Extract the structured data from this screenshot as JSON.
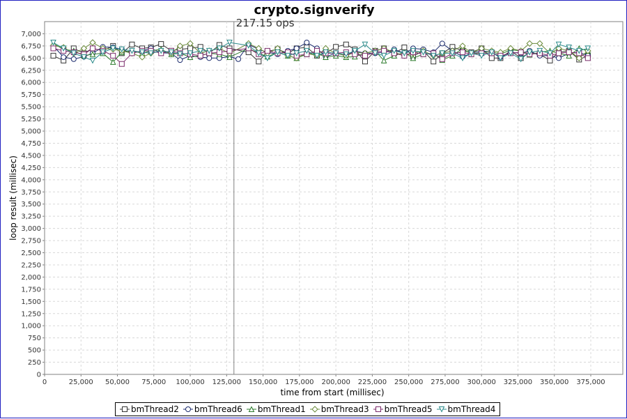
{
  "chart_data": {
    "type": "line",
    "title": "crypto.signverify",
    "annotation": "217.15 ops",
    "annotation_x": 130000,
    "xlabel": "time from start (millisec)",
    "ylabel": "loop result (millisec)",
    "xlim": [
      0,
      397000
    ],
    "ylim": [
      0,
      7250
    ],
    "x_ticks": [
      0,
      25000,
      50000,
      75000,
      100000,
      125000,
      150000,
      175000,
      200000,
      225000,
      250000,
      275000,
      300000,
      325000,
      350000,
      375000
    ],
    "x_tick_labels": [
      "0",
      "25,000",
      "50,000",
      "75,000",
      "100,000",
      "125,000",
      "150,000",
      "175,000",
      "200,000",
      "225,000",
      "250,000",
      "275,000",
      "300,000",
      "325,000",
      "350,000",
      "375,000"
    ],
    "y_ticks": [
      0,
      250,
      500,
      750,
      1000,
      1250,
      1500,
      1750,
      2000,
      2250,
      2500,
      2750,
      3000,
      3250,
      3500,
      3750,
      4000,
      4250,
      4500,
      4750,
      5000,
      5250,
      5500,
      5750,
      6000,
      6250,
      6500,
      6750,
      7000
    ],
    "y_tick_labels": [
      "0",
      "250",
      "500",
      "750",
      "1,000",
      "1,250",
      "1,500",
      "1,750",
      "2,000",
      "2,250",
      "2,500",
      "2,750",
      "3,000",
      "3,250",
      "3,500",
      "3,750",
      "4,000",
      "4,250",
      "4,500",
      "4,750",
      "5,000",
      "5,250",
      "5,500",
      "5,750",
      "6,000",
      "6,250",
      "6,500",
      "6,750",
      "7,000"
    ],
    "grid": true,
    "legend_position": "bottom",
    "series": [
      {
        "name": "bmThread2",
        "color": "#333333",
        "marker": "square",
        "x": [
          6000,
          13000,
          20000,
          27000,
          33000,
          40000,
          47000,
          53000,
          60000,
          67000,
          73000,
          80000,
          87000,
          93000,
          100000,
          107000,
          113000,
          120000,
          127000,
          140000,
          147000,
          153000,
          160000,
          167000,
          173000,
          180000,
          187000,
          193000,
          200000,
          207000,
          213000,
          220000,
          227000,
          233000,
          240000,
          247000,
          253000,
          260000,
          267000,
          273000,
          280000,
          287000,
          293000,
          300000,
          307000,
          313000,
          320000,
          327000,
          333000,
          340000,
          347000,
          353000,
          360000,
          367000,
          373000
        ],
        "y": [
          6550,
          6450,
          6700,
          6600,
          6700,
          6650,
          6750,
          6600,
          6780,
          6700,
          6720,
          6790,
          6650,
          6680,
          6700,
          6730,
          6600,
          6770,
          6700,
          6620,
          6430,
          6640,
          6680,
          6600,
          6700,
          6720,
          6550,
          6600,
          6730,
          6780,
          6680,
          6430,
          6650,
          6700,
          6600,
          6720,
          6540,
          6650,
          6430,
          6600,
          6730,
          6650,
          6620,
          6700,
          6500,
          6500,
          6650,
          6500,
          6620,
          6580,
          6450,
          6620,
          6650,
          6470,
          6550
        ]
      },
      {
        "name": "bmThread6",
        "color": "#1a2a6c",
        "marker": "circle",
        "x": [
          6000,
          13000,
          20000,
          27000,
          33000,
          40000,
          47000,
          53000,
          60000,
          67000,
          73000,
          80000,
          87000,
          93000,
          100000,
          107000,
          113000,
          120000,
          127000,
          133000,
          140000,
          147000,
          153000,
          160000,
          167000,
          173000,
          180000,
          187000,
          193000,
          200000,
          207000,
          213000,
          220000,
          227000,
          233000,
          240000,
          247000,
          253000,
          260000,
          267000,
          273000,
          280000,
          287000,
          293000,
          300000,
          307000,
          313000,
          320000,
          327000,
          333000,
          340000,
          347000,
          353000,
          360000,
          367000,
          373000
        ],
        "y": [
          6750,
          6520,
          6480,
          6530,
          6600,
          6730,
          6720,
          6680,
          6600,
          6650,
          6700,
          6610,
          6600,
          6460,
          6550,
          6520,
          6500,
          6500,
          6530,
          6480,
          6780,
          6680,
          6620,
          6580,
          6650,
          6700,
          6820,
          6700,
          6530,
          6600,
          6550,
          6650,
          6600,
          6600,
          6620,
          6680,
          6600,
          6700,
          6680,
          6620,
          6800,
          6650,
          6530,
          6600,
          6650,
          6620,
          6520,
          6620,
          6600,
          6650,
          6550,
          6550,
          6500,
          6600,
          6620,
          6550
        ]
      },
      {
        "name": "bmThread1",
        "color": "#2a7a2a",
        "marker": "triangle-up",
        "x": [
          6000,
          13000,
          20000,
          27000,
          33000,
          40000,
          47000,
          53000,
          60000,
          67000,
          73000,
          80000,
          87000,
          93000,
          100000,
          107000,
          113000,
          120000,
          127000,
          140000,
          147000,
          153000,
          160000,
          167000,
          173000,
          180000,
          187000,
          193000,
          200000,
          207000,
          213000,
          220000,
          227000,
          233000,
          240000,
          247000,
          253000,
          260000,
          267000,
          273000,
          280000,
          287000,
          293000,
          300000,
          307000,
          313000,
          320000,
          327000,
          333000,
          340000,
          347000,
          353000,
          360000,
          367000,
          373000
        ],
        "y": [
          6800,
          6680,
          6650,
          6550,
          6580,
          6600,
          6420,
          6620,
          6650,
          6600,
          6650,
          6680,
          6580,
          6600,
          6520,
          6550,
          6600,
          6580,
          6520,
          6700,
          6600,
          6530,
          6620,
          6550,
          6500,
          6580,
          6600,
          6520,
          6550,
          6520,
          6530,
          6600,
          6650,
          6450,
          6550,
          6620,
          6500,
          6580,
          6600,
          6460,
          6550,
          6700,
          6580,
          6620,
          6630,
          6580,
          6670,
          6650,
          6570,
          6620,
          6650,
          6600,
          6550,
          6700,
          6650
        ]
      },
      {
        "name": "bmThread3",
        "color": "#6a8a3a",
        "marker": "diamond",
        "x": [
          6000,
          13000,
          20000,
          27000,
          33000,
          40000,
          47000,
          53000,
          60000,
          67000,
          73000,
          80000,
          87000,
          93000,
          100000,
          107000,
          113000,
          120000,
          127000,
          140000,
          147000,
          153000,
          160000,
          167000,
          173000,
          180000,
          187000,
          193000,
          200000,
          207000,
          213000,
          220000,
          227000,
          233000,
          240000,
          247000,
          253000,
          260000,
          267000,
          273000,
          280000,
          287000,
          293000,
          300000,
          307000,
          313000,
          320000,
          327000,
          333000,
          340000,
          347000,
          353000,
          360000,
          367000,
          373000
        ],
        "y": [
          6760,
          6720,
          6600,
          6700,
          6820,
          6700,
          6680,
          6650,
          6600,
          6520,
          6600,
          6650,
          6600,
          6750,
          6800,
          6600,
          6650,
          6700,
          6600,
          6800,
          6700,
          6600,
          6700,
          6550,
          6500,
          6600,
          6550,
          6700,
          6600,
          6550,
          6620,
          6600,
          6650,
          6700,
          6620,
          6550,
          6600,
          6650,
          6550,
          6600,
          6650,
          6750,
          6600,
          6700,
          6650,
          6620,
          6700,
          6650,
          6800,
          6800,
          6600,
          6700,
          6650,
          6500,
          6650
        ]
      },
      {
        "name": "bmThread5",
        "color": "#7a2a6a",
        "marker": "square",
        "x": [
          6000,
          13000,
          20000,
          27000,
          33000,
          40000,
          47000,
          53000,
          60000,
          67000,
          73000,
          80000,
          87000,
          93000,
          100000,
          107000,
          113000,
          120000,
          127000,
          140000,
          147000,
          153000,
          160000,
          167000,
          173000,
          180000,
          187000,
          193000,
          200000,
          207000,
          213000,
          220000,
          227000,
          233000,
          240000,
          247000,
          253000,
          260000,
          267000,
          273000,
          280000,
          287000,
          293000,
          300000,
          307000,
          313000,
          320000,
          327000,
          333000,
          340000,
          347000,
          353000,
          360000,
          367000,
          373000
        ],
        "y": [
          6700,
          6650,
          6620,
          6580,
          6700,
          6650,
          6550,
          6380,
          6600,
          6650,
          6650,
          6600,
          6650,
          6600,
          6580,
          6550,
          6600,
          6620,
          6650,
          6700,
          6580,
          6650,
          6600,
          6620,
          6550,
          6580,
          6650,
          6600,
          6600,
          6620,
          6580,
          6550,
          6620,
          6650,
          6600,
          6550,
          6620,
          6580,
          6600,
          6480,
          6600,
          6620,
          6580,
          6600,
          6600,
          6550,
          6600,
          6620,
          6580,
          6600,
          6550,
          6600,
          6620,
          6600,
          6500
        ]
      },
      {
        "name": "bmThread4",
        "color": "#2a8a8a",
        "marker": "triangle-down",
        "x": [
          6000,
          13000,
          20000,
          27000,
          33000,
          40000,
          47000,
          53000,
          60000,
          67000,
          73000,
          80000,
          87000,
          93000,
          100000,
          107000,
          113000,
          120000,
          127000,
          140000,
          147000,
          153000,
          160000,
          167000,
          173000,
          180000,
          187000,
          193000,
          200000,
          207000,
          213000,
          220000,
          227000,
          233000,
          240000,
          247000,
          253000,
          260000,
          267000,
          273000,
          280000,
          287000,
          293000,
          300000,
          307000,
          313000,
          320000,
          327000,
          333000,
          340000,
          347000,
          353000,
          360000,
          367000,
          373000
        ],
        "y": [
          6820,
          6700,
          6600,
          6520,
          6450,
          6620,
          6700,
          6680,
          6650,
          6620,
          6600,
          6650,
          6620,
          6580,
          6600,
          6650,
          6650,
          6700,
          6820,
          6760,
          6600,
          6500,
          6620,
          6550,
          6600,
          6650,
          6550,
          6620,
          6600,
          6580,
          6650,
          6780,
          6600,
          6550,
          6650,
          6600,
          6650,
          6620,
          6550,
          6600,
          6600,
          6500,
          6600,
          6550,
          6620,
          6500,
          6600,
          6480,
          6620,
          6650,
          6600,
          6780,
          6720,
          6650,
          6700
        ]
      }
    ]
  }
}
